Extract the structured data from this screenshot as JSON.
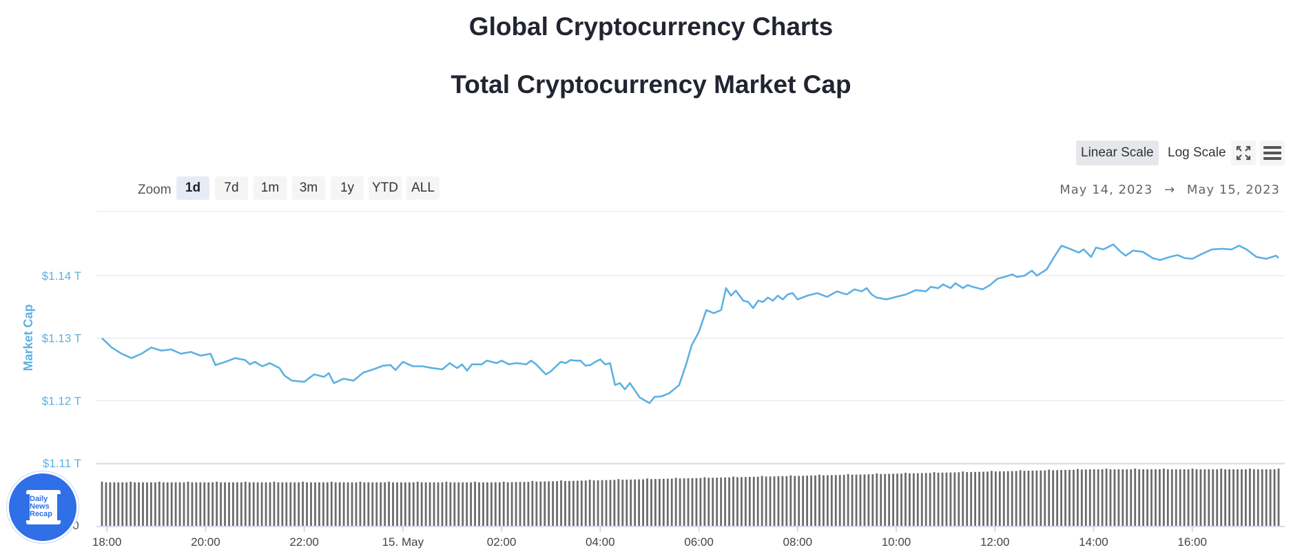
{
  "page": {
    "title": "Global Cryptocurrency Charts",
    "chart_title": "Total Cryptocurrency Market Cap"
  },
  "controls": {
    "scales": [
      {
        "label": "Linear Scale",
        "active": true
      },
      {
        "label": "Log Scale",
        "active": false
      }
    ],
    "icons": [
      "fullscreen-icon",
      "menu-icon"
    ],
    "zoom_label": "Zoom",
    "zoom_options": [
      {
        "label": "1d",
        "active": true
      },
      {
        "label": "7d",
        "active": false
      },
      {
        "label": "1m",
        "active": false
      },
      {
        "label": "3m",
        "active": false
      },
      {
        "label": "1y",
        "active": false
      },
      {
        "label": "YTD",
        "active": false
      },
      {
        "label": "ALL",
        "active": false
      }
    ],
    "range_from": "May 14, 2023",
    "range_arrow": "→",
    "range_to": "May 15, 2023"
  },
  "colors": {
    "line": "#5db0e3",
    "axis_label": "#5db0e3",
    "volume_bars": "#6b6b6b",
    "grid": "#e6e6e6",
    "badge": "#2f6fe8"
  },
  "badge": {
    "lines": [
      "Daily",
      "News",
      "Recap"
    ]
  },
  "chart_data": {
    "type": "line",
    "ylabel": "Market Cap",
    "y_unit": "T",
    "y_ticks": [
      "$1.11 T",
      "$1.12 T",
      "$1.13 T",
      "$1.14 T"
    ],
    "y_tick_values": [
      1.11,
      1.12,
      1.13,
      1.14
    ],
    "ylim": [
      1.1,
      1.15
    ],
    "volume_zero_label": "0",
    "x_ticks": [
      "18:00",
      "20:00",
      "22:00",
      "15. May",
      "02:00",
      "04:00",
      "06:00",
      "08:00",
      "10:00",
      "12:00",
      "14:00",
      "16:00"
    ],
    "x_tick_hours": [
      0,
      2,
      4,
      6,
      8,
      10,
      12,
      14,
      16,
      18,
      20,
      22
    ],
    "x_range_hours": [
      -0.1,
      23.75
    ],
    "series": [
      {
        "points": [
          [
            -0.1,
            1.13
          ],
          [
            0.1,
            1.1285
          ],
          [
            0.3,
            1.1275
          ],
          [
            0.5,
            1.1268
          ],
          [
            0.7,
            1.1275
          ],
          [
            0.9,
            1.1285
          ],
          [
            1.1,
            1.128
          ],
          [
            1.3,
            1.1282
          ],
          [
            1.5,
            1.1275
          ],
          [
            1.7,
            1.1278
          ],
          [
            1.9,
            1.1272
          ],
          [
            2.1,
            1.1275
          ],
          [
            2.2,
            1.1257
          ],
          [
            2.4,
            1.1262
          ],
          [
            2.6,
            1.1268
          ],
          [
            2.8,
            1.1265
          ],
          [
            2.9,
            1.1258
          ],
          [
            3.0,
            1.1262
          ],
          [
            3.15,
            1.1255
          ],
          [
            3.3,
            1.126
          ],
          [
            3.5,
            1.1252
          ],
          [
            3.6,
            1.124
          ],
          [
            3.75,
            1.1232
          ],
          [
            4.0,
            1.123
          ],
          [
            4.2,
            1.1242
          ],
          [
            4.4,
            1.1238
          ],
          [
            4.5,
            1.1244
          ],
          [
            4.6,
            1.1228
          ],
          [
            4.8,
            1.1235
          ],
          [
            5.0,
            1.1232
          ],
          [
            5.2,
            1.1245
          ],
          [
            5.4,
            1.125
          ],
          [
            5.6,
            1.1256
          ],
          [
            5.75,
            1.1257
          ],
          [
            5.85,
            1.1249
          ],
          [
            6.0,
            1.1262
          ],
          [
            6.2,
            1.1255
          ],
          [
            6.4,
            1.1255
          ],
          [
            6.6,
            1.1252
          ],
          [
            6.8,
            1.125
          ],
          [
            6.95,
            1.126
          ],
          [
            7.1,
            1.1252
          ],
          [
            7.2,
            1.1258
          ],
          [
            7.3,
            1.1248
          ],
          [
            7.4,
            1.1258
          ],
          [
            7.6,
            1.1258
          ],
          [
            7.7,
            1.1264
          ],
          [
            7.9,
            1.126
          ],
          [
            8.0,
            1.1264
          ],
          [
            8.15,
            1.1258
          ],
          [
            8.3,
            1.126
          ],
          [
            8.5,
            1.1258
          ],
          [
            8.6,
            1.1264
          ],
          [
            8.7,
            1.1258
          ],
          [
            8.9,
            1.1242
          ],
          [
            9.0,
            1.1247
          ],
          [
            9.2,
            1.1262
          ],
          [
            9.3,
            1.126
          ],
          [
            9.4,
            1.1265
          ],
          [
            9.5,
            1.1264
          ],
          [
            9.6,
            1.1264
          ],
          [
            9.7,
            1.1256
          ],
          [
            9.8,
            1.1257
          ],
          [
            9.9,
            1.1262
          ],
          [
            10.0,
            1.1266
          ],
          [
            10.1,
            1.1258
          ],
          [
            10.2,
            1.126
          ],
          [
            10.3,
            1.1225
          ],
          [
            10.4,
            1.1228
          ],
          [
            10.5,
            1.1218
          ],
          [
            10.6,
            1.1228
          ],
          [
            10.8,
            1.1205
          ],
          [
            11.0,
            1.1196
          ],
          [
            11.1,
            1.1206
          ],
          [
            11.25,
            1.1207
          ],
          [
            11.4,
            1.1212
          ],
          [
            11.6,
            1.1225
          ],
          [
            11.75,
            1.126
          ],
          [
            11.85,
            1.1288
          ],
          [
            12.0,
            1.131
          ],
          [
            12.15,
            1.1345
          ],
          [
            12.3,
            1.134
          ],
          [
            12.45,
            1.1345
          ],
          [
            12.55,
            1.138
          ],
          [
            12.65,
            1.1368
          ],
          [
            12.75,
            1.1376
          ],
          [
            12.9,
            1.136
          ],
          [
            13.0,
            1.1358
          ],
          [
            13.1,
            1.1348
          ],
          [
            13.2,
            1.136
          ],
          [
            13.3,
            1.1358
          ],
          [
            13.4,
            1.1365
          ],
          [
            13.5,
            1.136
          ],
          [
            13.6,
            1.1368
          ],
          [
            13.7,
            1.1362
          ],
          [
            13.8,
            1.137
          ],
          [
            13.9,
            1.1372
          ],
          [
            14.0,
            1.1362
          ],
          [
            14.2,
            1.1368
          ],
          [
            14.4,
            1.1372
          ],
          [
            14.6,
            1.1366
          ],
          [
            14.8,
            1.1375
          ],
          [
            14.9,
            1.1372
          ],
          [
            15.0,
            1.137
          ],
          [
            15.15,
            1.1378
          ],
          [
            15.3,
            1.1375
          ],
          [
            15.4,
            1.138
          ],
          [
            15.5,
            1.137
          ],
          [
            15.6,
            1.1365
          ],
          [
            15.8,
            1.1362
          ],
          [
            16.0,
            1.1366
          ],
          [
            16.2,
            1.137
          ],
          [
            16.4,
            1.1377
          ],
          [
            16.6,
            1.1375
          ],
          [
            16.7,
            1.1382
          ],
          [
            16.85,
            1.138
          ],
          [
            16.95,
            1.1386
          ],
          [
            17.1,
            1.138
          ],
          [
            17.2,
            1.1388
          ],
          [
            17.35,
            1.138
          ],
          [
            17.45,
            1.1385
          ],
          [
            17.55,
            1.1382
          ],
          [
            17.75,
            1.1378
          ],
          [
            17.9,
            1.1385
          ],
          [
            18.05,
            1.1395
          ],
          [
            18.2,
            1.1398
          ],
          [
            18.35,
            1.1402
          ],
          [
            18.45,
            1.1398
          ],
          [
            18.6,
            1.14
          ],
          [
            18.75,
            1.1408
          ],
          [
            18.85,
            1.14
          ],
          [
            19.05,
            1.141
          ],
          [
            19.2,
            1.143
          ],
          [
            19.35,
            1.1448
          ],
          [
            19.55,
            1.1442
          ],
          [
            19.7,
            1.1437
          ],
          [
            19.8,
            1.1442
          ],
          [
            19.95,
            1.143
          ],
          [
            20.05,
            1.1445
          ],
          [
            20.2,
            1.1442
          ],
          [
            20.4,
            1.145
          ],
          [
            20.55,
            1.1438
          ],
          [
            20.65,
            1.1432
          ],
          [
            20.8,
            1.144
          ],
          [
            21.0,
            1.1438
          ],
          [
            21.2,
            1.1428
          ],
          [
            21.35,
            1.1425
          ],
          [
            21.55,
            1.143
          ],
          [
            21.7,
            1.1433
          ],
          [
            21.85,
            1.1428
          ],
          [
            22.0,
            1.1427
          ],
          [
            22.2,
            1.1435
          ],
          [
            22.4,
            1.1442
          ],
          [
            22.6,
            1.1443
          ],
          [
            22.8,
            1.1442
          ],
          [
            22.95,
            1.1448
          ],
          [
            23.1,
            1.1442
          ],
          [
            23.3,
            1.143
          ],
          [
            23.5,
            1.1427
          ],
          [
            23.7,
            1.1432
          ],
          [
            23.75,
            1.1428
          ]
        ]
      }
    ],
    "grid": true
  }
}
